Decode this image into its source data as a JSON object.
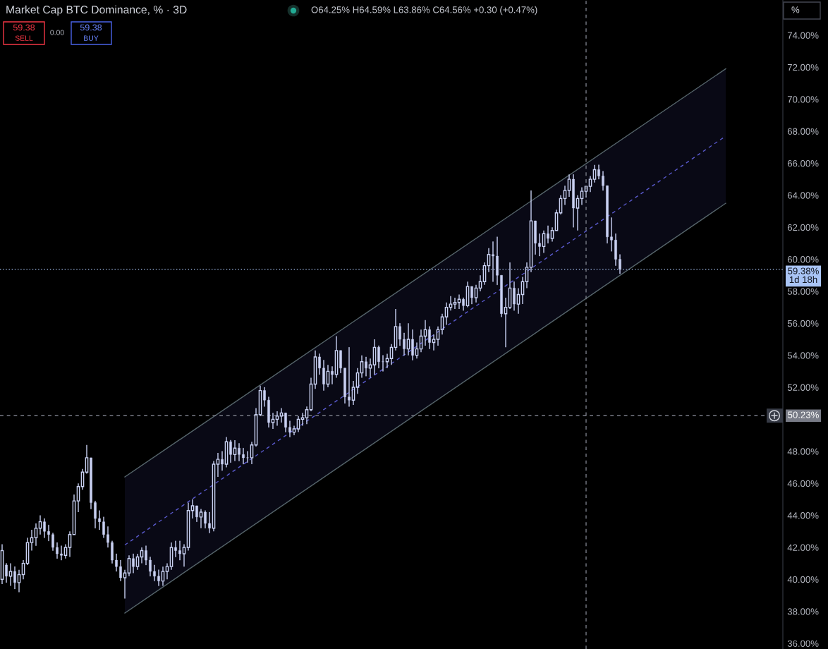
{
  "chart_data": {
    "type": "candlestick",
    "title": "Market Cap BTC Dominance, % · 3D",
    "annotations": [
      "O64.25% H64.59% L63.86% C64.56% +0.30 (+0.47%)",
      "59.38",
      "SELL",
      "0.00",
      "59.38",
      "BUY",
      "%"
    ],
    "categories": [
      null,
      null,
      null,
      null,
      null,
      null,
      null,
      null,
      null,
      null,
      null,
      null,
      null,
      null,
      null,
      null,
      null,
      null,
      null,
      null,
      null,
      null,
      null,
      null,
      null,
      null,
      null,
      null,
      null,
      null,
      null,
      null,
      null,
      null,
      null,
      null,
      null,
      null,
      null,
      null,
      null,
      null,
      null,
      null,
      null,
      null,
      null,
      null,
      null,
      null,
      null,
      null,
      null,
      null,
      null,
      null,
      null,
      null,
      null,
      null,
      null,
      null,
      null,
      null,
      null,
      null,
      null,
      null,
      null,
      null,
      null,
      null,
      null,
      null,
      null,
      null,
      null,
      null,
      null,
      null,
      null,
      null,
      null,
      null,
      null,
      null,
      null,
      null,
      null,
      null,
      null,
      null,
      null,
      null,
      null,
      null,
      null,
      null,
      null,
      null,
      null,
      null,
      null,
      null,
      null,
      null,
      null,
      null,
      null,
      null,
      null,
      null,
      null,
      null,
      null,
      null,
      null,
      null,
      null,
      null,
      null,
      null,
      null,
      null,
      null,
      null,
      null,
      null,
      null,
      null,
      null,
      null,
      null,
      null,
      null,
      null,
      null,
      null,
      null,
      null,
      null,
      null,
      null,
      null,
      null,
      null,
      null,
      null,
      null,
      null,
      null,
      null,
      null,
      null,
      null,
      null,
      null,
      null,
      null,
      null,
      null,
      null,
      null,
      null,
      null,
      null,
      null,
      null,
      null,
      null,
      null,
      null,
      null,
      null,
      null,
      null,
      null,
      null,
      null,
      null,
      null,
      null,
      null,
      null,
      null
    ],
    "ohlc": [
      [
        40.0,
        42.2,
        39.7,
        41.8
      ],
      [
        40.9,
        41.0,
        39.8,
        40.2
      ],
      [
        40.2,
        41.0,
        39.6,
        40.5
      ],
      [
        40.5,
        40.8,
        39.4,
        39.8
      ],
      [
        39.8,
        40.6,
        39.2,
        40.3
      ],
      [
        40.3,
        41.2,
        40.0,
        41.0
      ],
      [
        41.0,
        42.6,
        40.9,
        42.3
      ],
      [
        42.3,
        43.1,
        41.8,
        42.6
      ],
      [
        42.6,
        43.5,
        42.1,
        43.2
      ],
      [
        43.2,
        44.0,
        42.8,
        43.6
      ],
      [
        43.6,
        43.8,
        42.6,
        43.0
      ],
      [
        43.0,
        43.4,
        42.4,
        42.8
      ],
      [
        42.8,
        42.9,
        41.8,
        42.0
      ],
      [
        42.0,
        42.3,
        41.3,
        41.6
      ],
      [
        41.6,
        42.1,
        41.2,
        41.5
      ],
      [
        41.5,
        42.2,
        41.3,
        42.0
      ],
      [
        42.0,
        43.0,
        41.4,
        42.8
      ],
      [
        42.8,
        45.3,
        42.8,
        44.9
      ],
      [
        44.9,
        46.0,
        44.2,
        45.8
      ],
      [
        45.8,
        46.9,
        45.6,
        46.7
      ],
      [
        46.7,
        48.4,
        46.6,
        47.6
      ],
      [
        47.6,
        47.6,
        44.4,
        44.8
      ],
      [
        44.8,
        44.9,
        43.2,
        43.8
      ],
      [
        43.8,
        44.3,
        43.1,
        43.6
      ],
      [
        43.6,
        43.9,
        42.6,
        42.8
      ],
      [
        42.8,
        43.3,
        42.0,
        42.3
      ],
      [
        42.3,
        42.4,
        41.0,
        41.2
      ],
      [
        41.2,
        41.6,
        40.5,
        40.8
      ],
      [
        40.8,
        41.2,
        39.9,
        40.1
      ],
      [
        40.1,
        40.6,
        38.8,
        40.4
      ],
      [
        40.4,
        41.5,
        40.2,
        41.3
      ],
      [
        41.3,
        41.6,
        40.4,
        40.8
      ],
      [
        40.8,
        41.6,
        40.6,
        41.4
      ],
      [
        41.4,
        42.0,
        41.0,
        41.8
      ],
      [
        41.8,
        42.1,
        40.9,
        41.2
      ],
      [
        41.2,
        41.4,
        40.2,
        40.5
      ],
      [
        40.5,
        40.9,
        39.9,
        40.2
      ],
      [
        40.2,
        40.6,
        39.6,
        39.9
      ],
      [
        39.9,
        40.8,
        39.6,
        40.5
      ],
      [
        40.5,
        41.0,
        40.0,
        40.8
      ],
      [
        40.8,
        42.3,
        40.6,
        42.0
      ],
      [
        42.0,
        42.4,
        41.4,
        41.8
      ],
      [
        41.8,
        42.4,
        41.2,
        41.6
      ],
      [
        41.6,
        42.2,
        40.8,
        42.0
      ],
      [
        42.0,
        44.8,
        41.8,
        44.3
      ],
      [
        44.3,
        45.0,
        43.8,
        44.6
      ],
      [
        44.6,
        44.6,
        43.6,
        43.9
      ],
      [
        43.9,
        44.4,
        43.2,
        44.2
      ],
      [
        44.2,
        44.3,
        43.2,
        43.5
      ],
      [
        43.5,
        44.2,
        42.9,
        43.2
      ],
      [
        43.2,
        47.4,
        43.0,
        47.2
      ],
      [
        47.2,
        47.9,
        46.4,
        47.5
      ],
      [
        47.5,
        48.0,
        46.8,
        47.2
      ],
      [
        47.2,
        48.9,
        47.0,
        48.6
      ],
      [
        48.6,
        48.7,
        47.3,
        47.8
      ],
      [
        47.8,
        48.7,
        47.4,
        48.2
      ],
      [
        48.2,
        48.5,
        47.4,
        47.8
      ],
      [
        47.8,
        48.2,
        47.2,
        47.6
      ],
      [
        47.6,
        48.0,
        47.3,
        47.6
      ],
      [
        47.6,
        48.6,
        47.2,
        48.4
      ],
      [
        48.4,
        50.7,
        48.3,
        50.3
      ],
      [
        50.3,
        52.1,
        50.2,
        51.8
      ],
      [
        51.8,
        52.0,
        50.8,
        51.2
      ],
      [
        51.2,
        51.4,
        49.5,
        49.8
      ],
      [
        49.8,
        50.4,
        49.4,
        50.0
      ],
      [
        50.0,
        50.5,
        49.6,
        50.2
      ],
      [
        50.2,
        50.7,
        49.8,
        50.4
      ],
      [
        50.4,
        50.4,
        49.2,
        49.5
      ],
      [
        49.5,
        49.9,
        48.9,
        49.2
      ],
      [
        49.2,
        49.6,
        49.0,
        49.4
      ],
      [
        49.4,
        50.2,
        49.2,
        50.0
      ],
      [
        50.0,
        50.4,
        49.6,
        50.1
      ],
      [
        50.1,
        50.8,
        49.7,
        50.6
      ],
      [
        50.6,
        52.6,
        50.5,
        52.2
      ],
      [
        52.2,
        54.3,
        51.9,
        53.9
      ],
      [
        53.9,
        54.1,
        52.8,
        53.2
      ],
      [
        53.2,
        53.7,
        51.8,
        52.2
      ],
      [
        52.2,
        53.4,
        52.0,
        53.0
      ],
      [
        53.0,
        53.3,
        52.2,
        52.8
      ],
      [
        52.8,
        55.2,
        52.6,
        54.3
      ],
      [
        54.3,
        54.3,
        52.9,
        53.2
      ],
      [
        53.2,
        53.2,
        51.0,
        51.4
      ],
      [
        51.4,
        54.5,
        50.8,
        51.2
      ],
      [
        51.2,
        52.4,
        50.9,
        52.0
      ],
      [
        52.0,
        53.2,
        51.6,
        52.9
      ],
      [
        52.9,
        54.0,
        52.6,
        53.6
      ],
      [
        53.6,
        53.9,
        52.7,
        53.2
      ],
      [
        53.2,
        53.8,
        52.6,
        53.4
      ],
      [
        53.4,
        55.0,
        52.8,
        54.5
      ],
      [
        54.5,
        54.6,
        53.2,
        53.6
      ],
      [
        53.6,
        54.0,
        53.0,
        53.6
      ],
      [
        53.6,
        54.1,
        53.2,
        53.8
      ],
      [
        53.8,
        54.7,
        53.4,
        54.5
      ],
      [
        54.5,
        56.9,
        54.3,
        55.8
      ],
      [
        55.8,
        56.0,
        54.6,
        55.0
      ],
      [
        55.0,
        55.4,
        54.0,
        54.4
      ],
      [
        54.4,
        56.0,
        54.0,
        55.0
      ],
      [
        55.0,
        55.6,
        53.7,
        54.0
      ],
      [
        54.0,
        54.8,
        53.8,
        54.4
      ],
      [
        54.4,
        55.6,
        54.2,
        55.2
      ],
      [
        55.2,
        56.2,
        54.6,
        55.6
      ],
      [
        55.6,
        55.8,
        54.4,
        54.8
      ],
      [
        54.8,
        55.3,
        54.3,
        55.0
      ],
      [
        55.0,
        55.8,
        54.6,
        55.6
      ],
      [
        55.6,
        56.6,
        55.3,
        56.4
      ],
      [
        56.4,
        57.3,
        55.9,
        57.0
      ],
      [
        57.0,
        57.7,
        56.8,
        57.2
      ],
      [
        57.2,
        57.6,
        56.9,
        57.3
      ],
      [
        57.3,
        57.8,
        56.9,
        57.5
      ],
      [
        57.5,
        57.6,
        56.8,
        57.1
      ],
      [
        57.1,
        58.6,
        57.0,
        58.3
      ],
      [
        58.3,
        58.3,
        57.2,
        57.6
      ],
      [
        57.6,
        58.4,
        57.3,
        58.2
      ],
      [
        58.2,
        59.0,
        58.0,
        58.6
      ],
      [
        58.6,
        59.8,
        58.4,
        59.6
      ],
      [
        59.6,
        60.7,
        59.2,
        60.3
      ],
      [
        60.3,
        61.1,
        58.6,
        60.2
      ],
      [
        60.2,
        61.4,
        58.4,
        59.0
      ],
      [
        59.0,
        59.0,
        56.4,
        56.6
      ],
      [
        56.6,
        57.6,
        54.5,
        57.0
      ],
      [
        57.0,
        59.8,
        56.9,
        58.2
      ],
      [
        58.2,
        58.6,
        56.8,
        57.2
      ],
      [
        57.2,
        58.2,
        56.6,
        57.8
      ],
      [
        57.8,
        58.9,
        57.2,
        58.6
      ],
      [
        58.6,
        59.8,
        58.2,
        59.5
      ],
      [
        59.5,
        64.3,
        59.2,
        62.4
      ],
      [
        62.4,
        62.4,
        60.3,
        61.0
      ],
      [
        61.0,
        61.6,
        60.2,
        60.8
      ],
      [
        60.8,
        61.8,
        60.4,
        61.6
      ],
      [
        61.6,
        62.1,
        61.0,
        61.3
      ],
      [
        61.3,
        62.0,
        61.1,
        61.8
      ],
      [
        61.8,
        63.1,
        61.8,
        62.9
      ],
      [
        62.9,
        64.0,
        62.8,
        63.8
      ],
      [
        63.8,
        64.6,
        63.4,
        64.3
      ],
      [
        64.3,
        65.3,
        63.9,
        65.0
      ],
      [
        65.0,
        65.3,
        62.0,
        63.2
      ],
      [
        63.2,
        64.0,
        61.8,
        63.8
      ],
      [
        63.8,
        64.5,
        63.4,
        64.25
      ],
      [
        64.25,
        64.59,
        63.86,
        64.56
      ],
      [
        64.56,
        65.2,
        64.2,
        65.0
      ],
      [
        65.0,
        65.9,
        64.8,
        65.6
      ],
      [
        65.6,
        65.9,
        65.0,
        65.2
      ],
      [
        65.2,
        65.5,
        64.3,
        64.6
      ],
      [
        64.6,
        64.6,
        61.0,
        61.4
      ],
      [
        61.4,
        62.6,
        60.5,
        61.2
      ],
      [
        61.2,
        61.6,
        59.6,
        60.0
      ],
      [
        60.0,
        60.3,
        59.1,
        59.38
      ],
      null,
      null,
      null,
      null,
      null,
      null,
      null,
      null,
      null,
      null,
      null,
      null,
      null,
      null,
      null,
      null,
      null,
      null,
      null,
      null,
      null,
      null,
      null,
      null,
      null,
      null,
      null,
      null,
      null,
      null,
      null,
      null,
      null,
      null,
      null,
      null,
      null,
      null
    ],
    "color": "#c9d1f2",
    "series": [
      {
        "type": "line",
        "color": "#56656b",
        "line_style": "solid",
        "values": [
          null,
          null,
          null,
          null,
          null,
          null,
          null,
          null,
          null,
          null,
          null,
          null,
          null,
          null,
          null,
          null,
          null,
          null,
          null,
          null,
          null,
          null,
          null,
          null,
          null,
          null,
          null,
          null,
          null,
          46.4,
          null,
          null,
          null,
          null,
          null,
          null,
          null,
          null,
          null,
          null,
          null,
          null,
          null,
          null,
          null,
          null,
          null,
          null,
          null,
          null,
          null,
          null,
          null,
          null,
          null,
          null,
          null,
          null,
          null,
          null,
          null,
          null,
          null,
          null,
          null,
          null,
          null,
          null,
          null,
          null,
          null,
          null,
          null,
          null,
          null,
          null,
          null,
          null,
          null,
          null,
          null,
          null,
          null,
          null,
          null,
          null,
          null,
          null,
          null,
          null,
          null,
          null,
          null,
          null,
          null,
          null,
          null,
          null,
          null,
          null,
          null,
          null,
          null,
          null,
          null,
          null,
          null,
          null,
          null,
          null,
          null,
          null,
          null,
          null,
          null,
          null,
          null,
          null,
          null,
          null,
          null,
          null,
          null,
          null,
          null,
          null,
          null,
          null,
          null,
          null,
          null,
          null,
          null,
          null,
          null,
          null,
          null,
          null,
          null,
          null,
          null,
          null,
          null,
          null,
          null,
          null,
          null,
          null,
          null,
          null,
          null,
          null,
          null,
          null,
          null,
          null,
          null,
          null,
          null,
          null,
          null,
          null,
          null,
          null,
          null,
          null,
          null,
          null,
          null,
          null,
          null,
          71.9,
          null,
          null,
          null,
          null,
          null,
          null,
          null,
          null,
          null,
          null,
          null,
          null,
          null
        ]
      },
      {
        "type": "line",
        "color": "#5a5acd",
        "line_style": "dashed",
        "values": [
          null,
          null,
          null,
          null,
          null,
          null,
          null,
          null,
          null,
          null,
          null,
          null,
          null,
          null,
          null,
          null,
          null,
          null,
          null,
          null,
          null,
          null,
          null,
          null,
          null,
          null,
          null,
          null,
          null,
          42.15,
          null,
          null,
          null,
          null,
          null,
          null,
          null,
          null,
          null,
          null,
          null,
          null,
          null,
          null,
          null,
          null,
          null,
          null,
          null,
          null,
          null,
          null,
          null,
          null,
          null,
          null,
          null,
          null,
          null,
          null,
          null,
          null,
          null,
          null,
          null,
          null,
          null,
          null,
          null,
          null,
          null,
          null,
          null,
          null,
          null,
          null,
          null,
          null,
          null,
          null,
          null,
          null,
          null,
          null,
          null,
          null,
          null,
          null,
          null,
          null,
          null,
          null,
          null,
          null,
          null,
          null,
          null,
          null,
          null,
          null,
          null,
          null,
          null,
          null,
          null,
          null,
          null,
          null,
          null,
          null,
          null,
          null,
          null,
          null,
          null,
          null,
          null,
          null,
          null,
          null,
          null,
          null,
          null,
          null,
          null,
          null,
          null,
          null,
          null,
          null,
          null,
          null,
          null,
          null,
          null,
          null,
          null,
          null,
          null,
          null,
          null,
          null,
          null,
          null,
          null,
          null,
          null,
          null,
          null,
          null,
          null,
          null,
          null,
          null,
          null,
          null,
          null,
          null,
          null,
          null,
          null,
          null,
          null,
          null,
          null,
          null,
          null,
          null,
          null,
          null,
          null,
          67.7,
          null,
          null,
          null,
          null,
          null,
          null,
          null,
          null,
          null,
          null,
          null,
          null,
          null
        ],
        "lower": [
          null,
          null,
          null,
          null,
          null,
          null,
          null,
          null,
          null,
          null,
          null,
          null,
          null,
          null,
          null,
          null,
          null,
          null,
          null,
          null,
          null,
          null,
          null,
          null,
          null,
          null,
          null,
          null,
          null,
          37.9,
          null,
          null,
          null,
          null,
          null,
          null,
          null,
          null,
          null,
          null,
          null,
          null,
          null,
          null,
          null,
          null,
          null,
          null,
          null,
          null,
          null,
          null,
          null,
          null,
          null,
          null,
          null,
          null,
          null,
          null,
          null,
          null,
          null,
          null,
          null,
          null,
          null,
          null,
          null,
          null,
          null,
          null,
          null,
          null,
          null,
          null,
          null,
          null,
          null,
          null,
          null,
          null,
          null,
          null,
          null,
          null,
          null,
          null,
          null,
          null,
          null,
          null,
          null,
          null,
          null,
          null,
          null,
          null,
          null,
          null,
          null,
          null,
          null,
          null,
          null,
          null,
          null,
          null,
          null,
          null,
          null,
          null,
          null,
          null,
          null,
          null,
          null,
          null,
          null,
          null,
          null,
          null,
          null,
          null,
          null,
          null,
          null,
          null,
          null,
          null,
          null,
          null,
          null,
          null,
          null,
          null,
          null,
          null,
          null,
          null,
          null,
          null,
          null,
          null,
          null,
          null,
          null,
          null,
          null,
          null,
          null,
          null,
          null,
          null,
          null,
          null,
          null,
          null,
          null,
          null,
          null,
          null,
          null,
          null,
          null,
          null,
          null,
          null,
          null,
          null,
          null,
          63.5,
          null,
          null,
          null,
          null,
          null,
          null,
          null,
          null,
          null,
          null,
          null,
          null,
          null
        ],
        "upper": [
          null,
          null,
          null,
          null,
          null,
          null,
          null,
          null,
          null,
          null,
          null,
          null,
          null,
          null,
          null,
          null,
          null,
          null,
          null,
          null,
          null,
          null,
          null,
          null,
          null,
          null,
          null,
          null,
          null,
          46.4,
          null,
          null,
          null,
          null,
          null,
          null,
          null,
          null,
          null,
          null,
          null,
          null,
          null,
          null,
          null,
          null,
          null,
          null,
          null,
          null,
          null,
          null,
          null,
          null,
          null,
          null,
          null,
          null,
          null,
          null,
          null,
          null,
          null,
          null,
          null,
          null,
          null,
          null,
          null,
          null,
          null,
          null,
          null,
          null,
          null,
          null,
          null,
          null,
          null,
          null,
          null,
          null,
          null,
          null,
          null,
          null,
          null,
          null,
          null,
          null,
          null,
          null,
          null,
          null,
          null,
          null,
          null,
          null,
          null,
          null,
          null,
          null,
          null,
          null,
          null,
          null,
          null,
          null,
          null,
          null,
          null,
          null,
          null,
          null,
          null,
          null,
          null,
          null,
          null,
          null,
          null,
          null,
          null,
          null,
          null,
          null,
          null,
          null,
          null,
          null,
          null,
          null,
          null,
          null,
          null,
          null,
          null,
          null,
          null,
          null,
          null,
          null,
          null,
          null,
          null,
          null,
          null,
          null,
          null,
          null,
          null,
          null,
          null,
          null,
          null,
          null,
          null,
          null,
          null,
          null,
          null,
          null,
          null,
          null,
          null,
          null,
          null,
          null,
          null,
          null,
          null,
          71.9,
          null,
          null,
          null,
          null,
          null,
          null,
          null,
          null,
          null,
          null,
          null,
          null,
          null
        ]
      },
      {
        "type": "line",
        "color": "#56656b",
        "line_style": "solid",
        "values": [
          null,
          null,
          null,
          null,
          null,
          null,
          null,
          null,
          null,
          null,
          null,
          null,
          null,
          null,
          null,
          null,
          null,
          null,
          null,
          null,
          null,
          null,
          null,
          null,
          null,
          null,
          null,
          null,
          null,
          37.9,
          null,
          null,
          null,
          null,
          null,
          null,
          null,
          null,
          null,
          null,
          null,
          null,
          null,
          null,
          null,
          null,
          null,
          null,
          null,
          null,
          null,
          null,
          null,
          null,
          null,
          null,
          null,
          null,
          null,
          null,
          null,
          null,
          null,
          null,
          null,
          null,
          null,
          null,
          null,
          null,
          null,
          null,
          null,
          null,
          null,
          null,
          null,
          null,
          null,
          null,
          null,
          null,
          null,
          null,
          null,
          null,
          null,
          null,
          null,
          null,
          null,
          null,
          null,
          null,
          null,
          null,
          null,
          null,
          null,
          null,
          null,
          null,
          null,
          null,
          null,
          null,
          null,
          null,
          null,
          null,
          null,
          null,
          null,
          null,
          null,
          null,
          null,
          null,
          null,
          null,
          null,
          null,
          null,
          null,
          null,
          null,
          null,
          null,
          null,
          null,
          null,
          null,
          null,
          null,
          null,
          null,
          null,
          null,
          null,
          null,
          null,
          null,
          null,
          null,
          null,
          null,
          null,
          null,
          null,
          null,
          null,
          null,
          null,
          null,
          null,
          null,
          null,
          null,
          null,
          null,
          null,
          null,
          null,
          null,
          null,
          null,
          null,
          null,
          null,
          null,
          null,
          63.5,
          null,
          null,
          null,
          null,
          null,
          null,
          null,
          null,
          null,
          null,
          null,
          null,
          null
        ]
      }
    ],
    "ylim": [
      35.65,
      76.2
    ],
    "yticks": [
      {
        "value": 36,
        "label": "36.00%"
      },
      {
        "value": 38,
        "label": "38.00%"
      },
      {
        "value": 40,
        "label": "40.00%"
      },
      {
        "value": 42,
        "label": "42.00%"
      },
      {
        "value": 44,
        "label": "44.00%"
      },
      {
        "value": 46,
        "label": "46.00%"
      },
      {
        "value": 48,
        "label": "48.00%"
      },
      {
        "value": 52,
        "label": "52.00%"
      },
      {
        "value": 54,
        "label": "54.00%"
      },
      {
        "value": 56,
        "label": "56.00%"
      },
      {
        "value": 58,
        "label": "58.00%"
      },
      {
        "value": 60,
        "label": "60.00%"
      },
      {
        "value": 62,
        "label": "62.00%"
      },
      {
        "value": 64,
        "label": "64.00%"
      },
      {
        "value": 66,
        "label": "66.00%"
      },
      {
        "value": 68,
        "label": "68.00%"
      },
      {
        "value": 70,
        "label": "70.00%"
      },
      {
        "value": 72,
        "label": "72.00%"
      },
      {
        "value": 74,
        "label": "74.00%"
      }
    ],
    "tick_labels": "y",
    "ref_lines": [
      {
        "axis": "y",
        "value": 59.38,
        "label": "59.38%\n1d 18h",
        "color": "#a9c4f5",
        "line_style": "dotted"
      },
      {
        "axis": "y",
        "value": 50.23,
        "label": "50.23%",
        "color": "#787b86",
        "line_style": "dashed"
      }
    ]
  }
}
